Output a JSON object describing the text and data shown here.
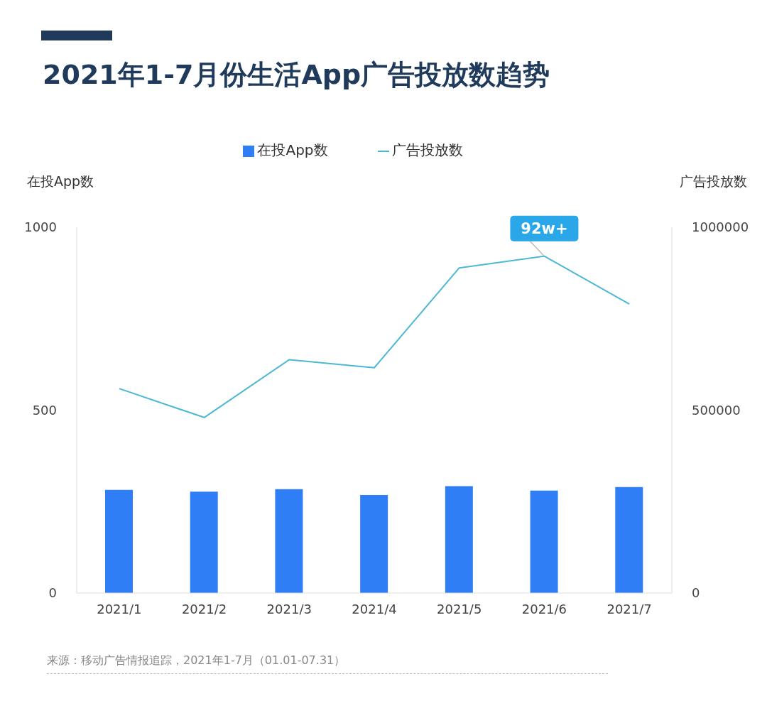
{
  "chart_data": {
    "type": "bar",
    "title": "2021年1-7月份生活App广告投放数趋势",
    "categories": [
      "2021/1",
      "2021/2",
      "2021/3",
      "2021/4",
      "2021/5",
      "2021/6",
      "2021/7"
    ],
    "series": [
      {
        "name": "在投App数",
        "color": "#2f7ef5",
        "values": [
          282,
          277,
          284,
          268,
          292,
          280,
          290
        ]
      },
      {
        "name": "广告投放数",
        "type": "line",
        "axis": "y2",
        "color": "#4cb8d4",
        "values": [
          559000,
          480000,
          638000,
          616000,
          889000,
          921000,
          790000
        ]
      }
    ],
    "ylabel": "在投App数",
    "y2label": "广告投放数",
    "ylim": [
      0,
      1000
    ],
    "yticks": [
      0,
      500,
      1000
    ],
    "y2lim": [
      0,
      1000000
    ],
    "y2ticks": [
      0,
      500000,
      1000000
    ],
    "legend": "top",
    "marker": "none",
    "line_style": "solid",
    "annotations": [
      "92w+",
      "来源：移动广告情报追踪，2021年1-7月（01.01-07.31）"
    ]
  }
}
